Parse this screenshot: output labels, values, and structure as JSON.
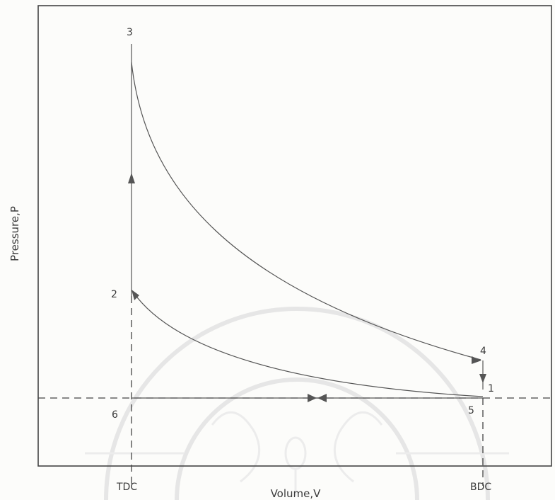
{
  "diagram": {
    "y_axis_label": "Pressure,P",
    "x_axis_label": "Volume,V",
    "x_ticks": [
      "TDC",
      "BDC"
    ],
    "state_points": [
      "1",
      "2",
      "3",
      "4",
      "5",
      "6"
    ]
  }
}
